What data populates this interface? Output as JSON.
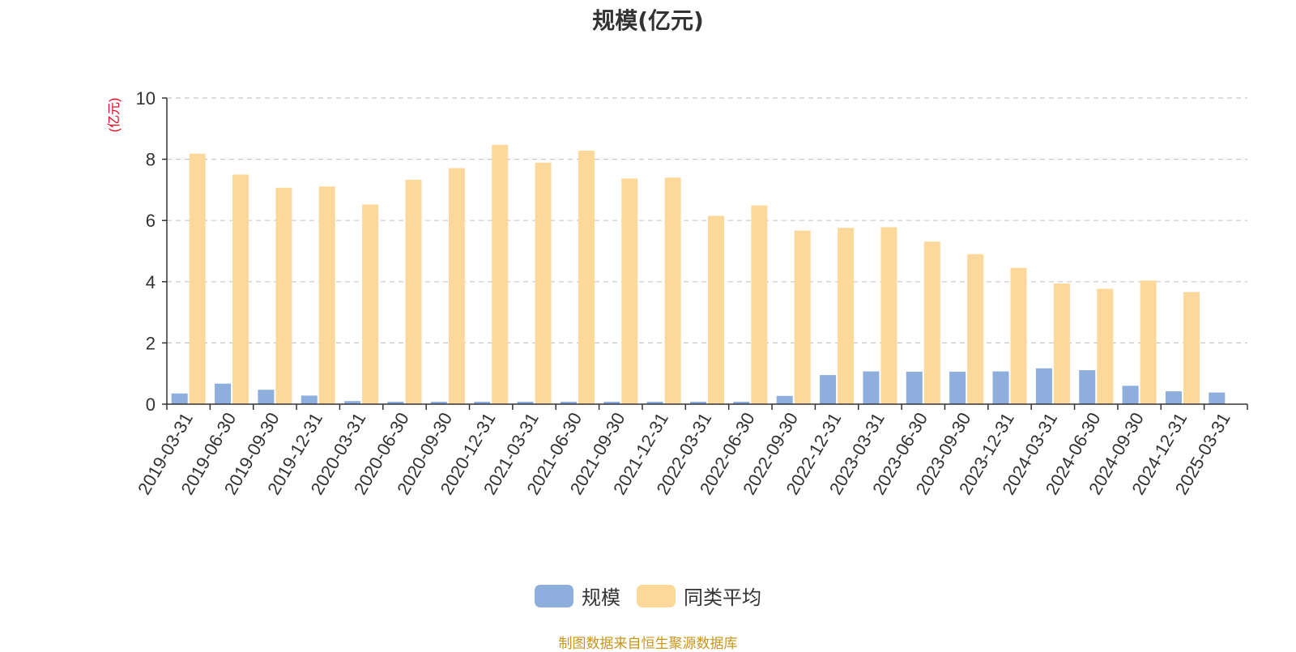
{
  "title": "规模(亿元)",
  "source": "制图数据来自恒生聚源数据库",
  "colors": {
    "series0": "#8eafdd",
    "series1": "#fdd89b",
    "ylabel": "#e8001c",
    "grid": "#c8c8c8",
    "axis": "#333333",
    "text": "#333333"
  },
  "chart_data": {
    "type": "bar",
    "title": "规模(亿元)",
    "ylabel": "(亿元)",
    "xlabel": "",
    "ylim": [
      0,
      10
    ],
    "yticks": [
      0,
      2,
      4,
      6,
      8,
      10
    ],
    "grid": true,
    "legend_position": "bottom",
    "categories": [
      "2019-03-31",
      "2019-06-30",
      "2019-09-30",
      "2019-12-31",
      "2020-03-31",
      "2020-06-30",
      "2020-09-30",
      "2020-12-31",
      "2021-03-31",
      "2021-06-30",
      "2021-09-30",
      "2021-12-31",
      "2022-03-31",
      "2022-06-30",
      "2022-09-30",
      "2022-12-31",
      "2023-03-31",
      "2023-06-30",
      "2023-09-30",
      "2023-12-31",
      "2024-03-31",
      "2024-06-30",
      "2024-09-30",
      "2024-12-31",
      "2025-03-31"
    ],
    "series": [
      {
        "name": "规模",
        "values": [
          0.35,
          0.67,
          0.47,
          0.28,
          0.1,
          0.08,
          0.08,
          0.08,
          0.08,
          0.08,
          0.08,
          0.08,
          0.08,
          0.08,
          0.27,
          0.95,
          1.07,
          1.06,
          1.06,
          1.07,
          1.17,
          1.11,
          0.6,
          0.42,
          0.38
        ]
      },
      {
        "name": "同类平均",
        "values": [
          8.18,
          7.5,
          7.07,
          7.11,
          6.52,
          7.33,
          7.71,
          8.47,
          7.89,
          8.28,
          7.37,
          7.4,
          6.15,
          6.49,
          5.67,
          5.76,
          5.78,
          5.31,
          4.9,
          4.45,
          3.94,
          3.77,
          4.04,
          3.66,
          null
        ]
      }
    ]
  }
}
